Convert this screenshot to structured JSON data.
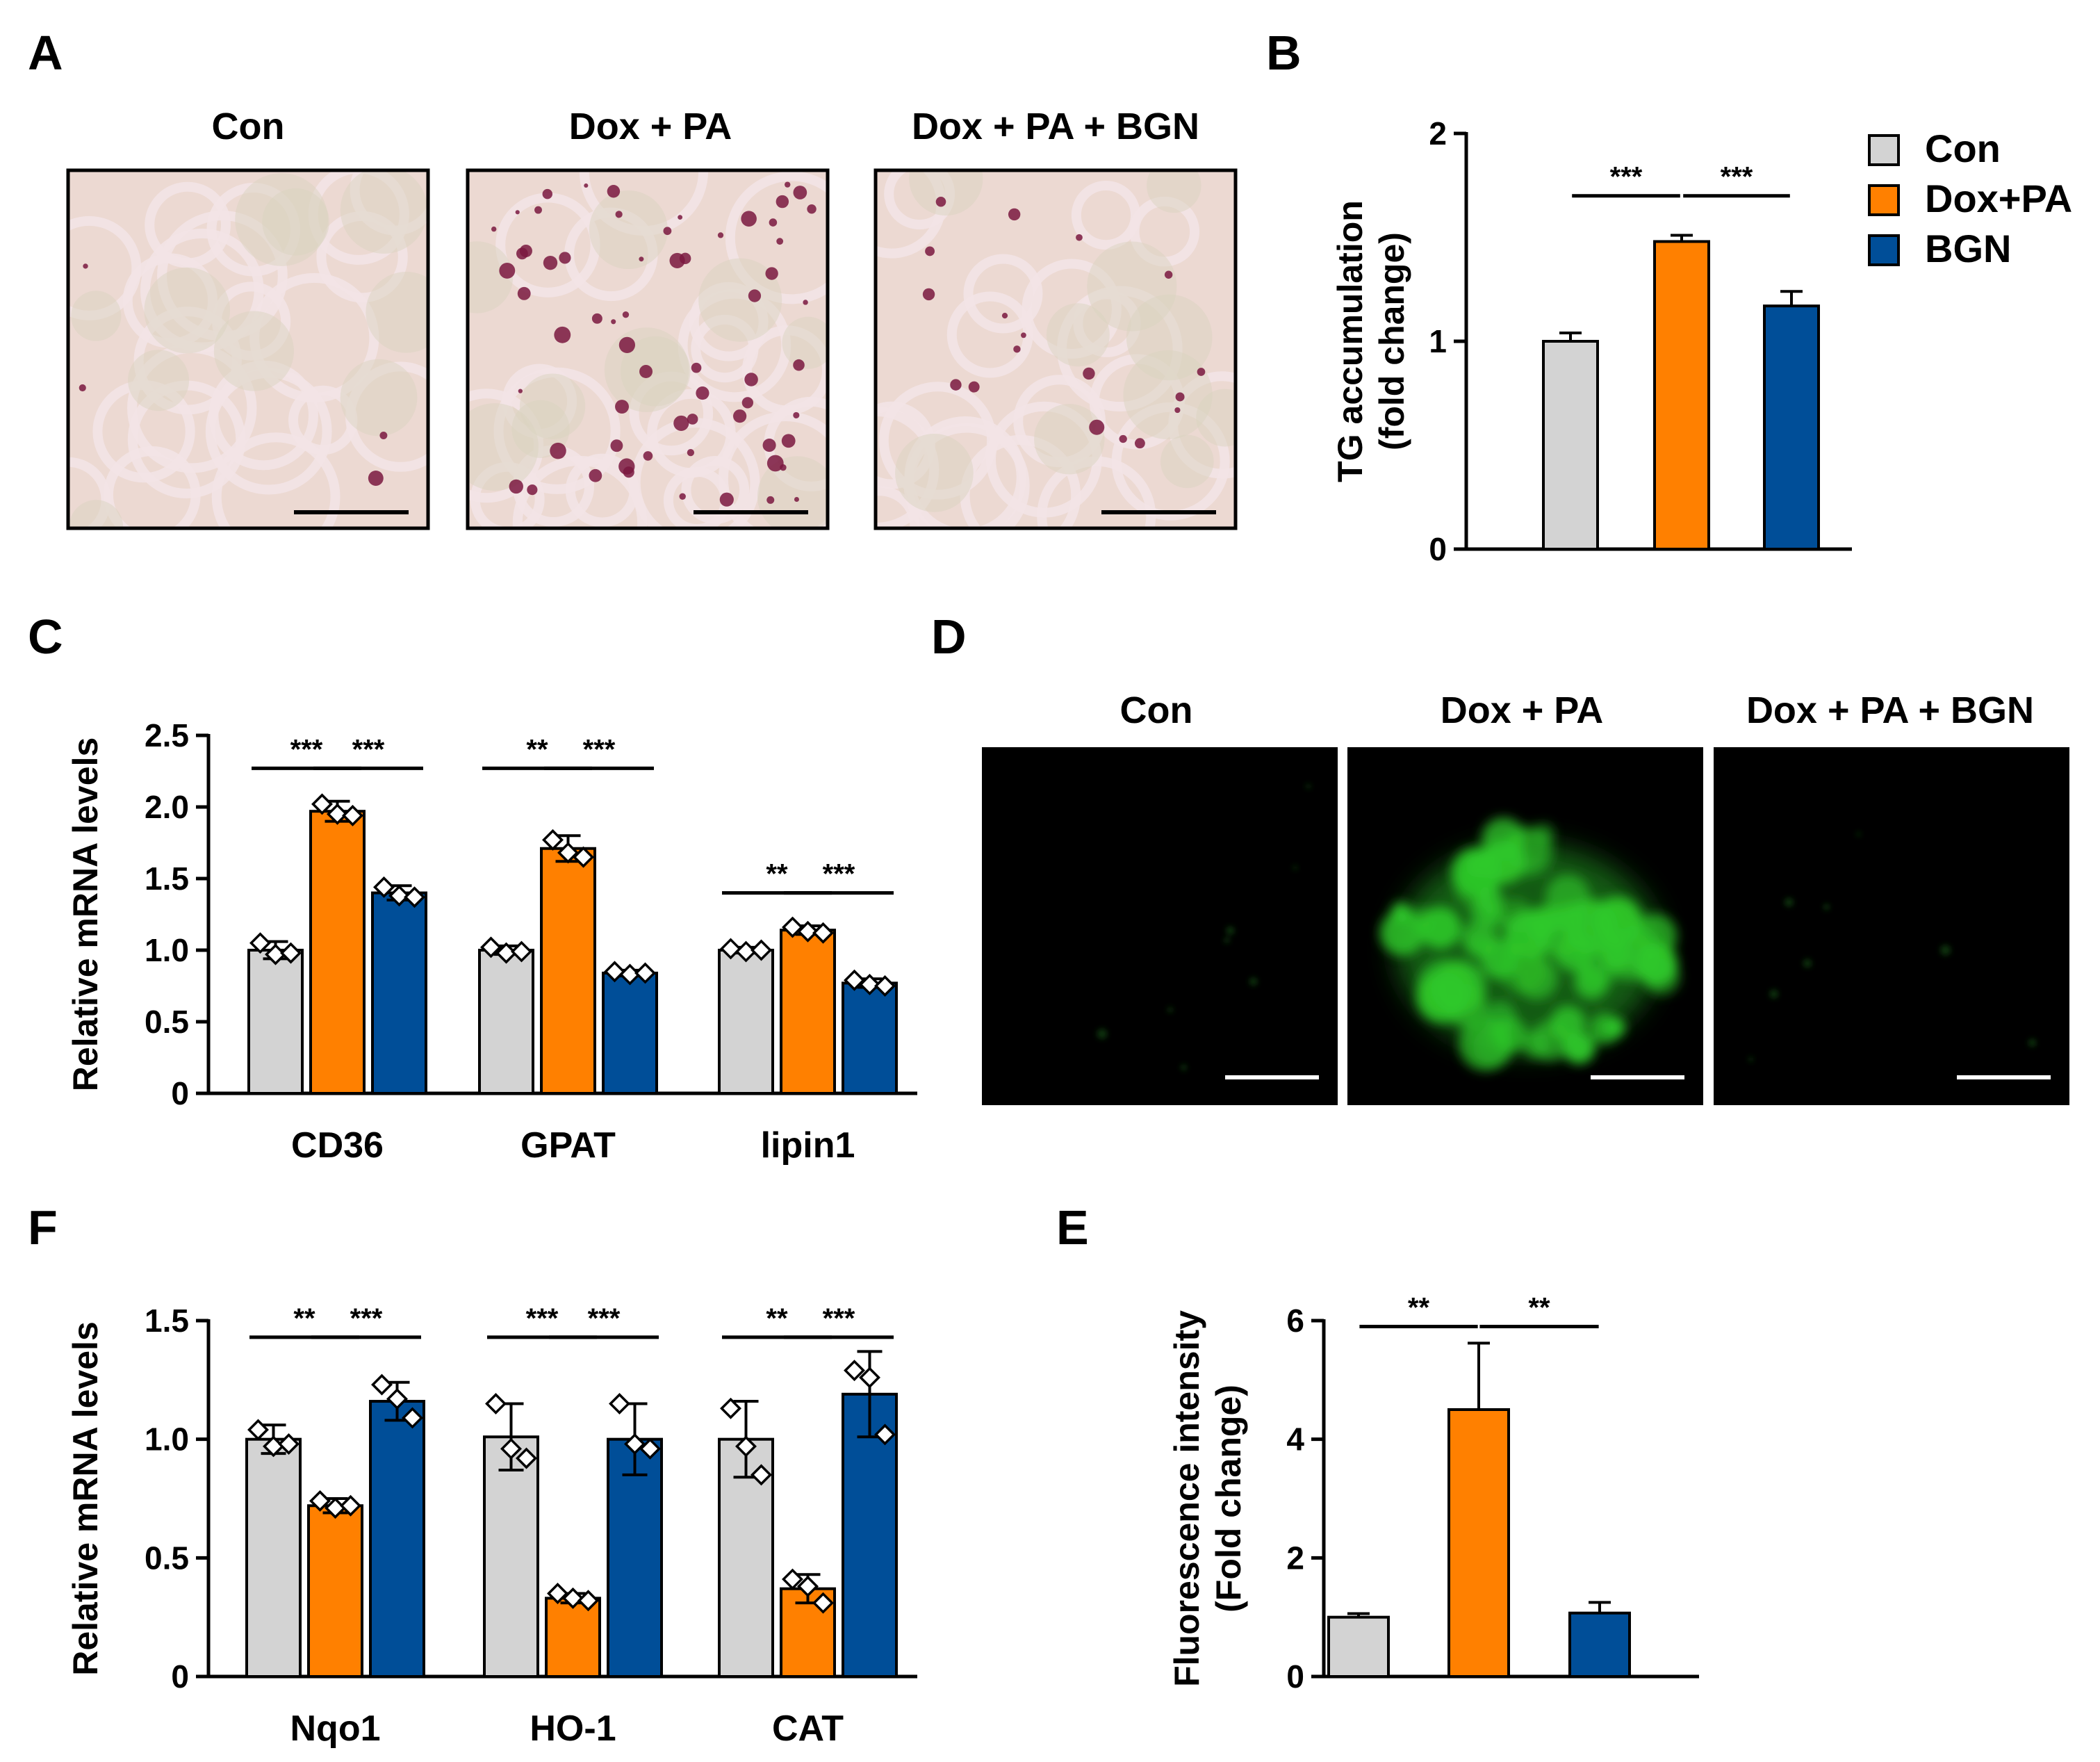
{
  "colors": {
    "con": "#d3d3d3",
    "doxpa": "#ff8000",
    "bgn": "#004e98",
    "stain_bg": "#ecd9d2",
    "stain_membrane": "#f3e3e6",
    "lipid": "#7a1840",
    "fluor": "#2fc92a",
    "fluor_bg": "#000000"
  },
  "panel_a": {
    "letter": "A",
    "titles": [
      "Con",
      "Dox + PA",
      "Dox + PA + BGN"
    ],
    "lipid_density": [
      0.05,
      0.9,
      0.25
    ]
  },
  "panel_d": {
    "letter": "D",
    "titles": [
      "Con",
      "Dox + PA",
      "Dox + PA + BGN"
    ],
    "intensity": [
      0.06,
      1.0,
      0.05
    ]
  },
  "chart_data": [
    {
      "panel": "B",
      "type": "bar",
      "ylabel": [
        "TG accumulation",
        "(fold change)"
      ],
      "ylim": [
        0,
        2
      ],
      "yticks": [
        0,
        1,
        2
      ],
      "ytick_labels": [
        "0",
        "1",
        "2"
      ],
      "categories": [
        "Con",
        "Dox+PA",
        "BGN"
      ],
      "values": [
        1.0,
        1.48,
        1.17
      ],
      "errors": [
        0.04,
        0.03,
        0.07
      ],
      "significance": [
        {
          "from": 0,
          "to": 1,
          "label": "***",
          "y": 1.7
        },
        {
          "from": 1,
          "to": 2,
          "label": "***",
          "y": 1.7
        }
      ],
      "legend": {
        "entries": [
          "Con",
          "Dox+PA",
          "BGN"
        ],
        "placement": "right"
      }
    },
    {
      "panel": "C",
      "type": "bar",
      "ylabel": "Relative mRNA levels",
      "ylim": [
        0,
        2.5
      ],
      "yticks": [
        0,
        0.5,
        1.0,
        1.5,
        2.0,
        2.5
      ],
      "ytick_labels": [
        "0",
        "0.5",
        "1.0",
        "1.5",
        "2.0",
        "2.5"
      ],
      "categories": [
        "CD36",
        "GPAT",
        "lipin1"
      ],
      "series": [
        {
          "values": [
            1.0,
            1.0,
            1.0
          ],
          "errors": [
            0.06,
            0.03,
            0.02
          ],
          "points": [
            [
              1.05,
              0.97,
              0.98
            ],
            [
              1.02,
              0.98,
              0.99
            ],
            [
              1.01,
              0.99,
              1.0
            ]
          ]
        },
        {
          "values": [
            1.97,
            1.71,
            1.14
          ],
          "errors": [
            0.07,
            0.09,
            0.03
          ],
          "points": [
            [
              2.02,
              1.95,
              1.94
            ],
            [
              1.77,
              1.68,
              1.65
            ],
            [
              1.16,
              1.13,
              1.12
            ]
          ]
        },
        {
          "values": [
            1.4,
            0.84,
            0.77
          ],
          "errors": [
            0.05,
            0.02,
            0.03
          ],
          "points": [
            [
              1.44,
              1.38,
              1.37
            ],
            [
              0.85,
              0.83,
              0.84
            ],
            [
              0.79,
              0.76,
              0.75
            ]
          ]
        }
      ],
      "significance": [
        {
          "cat": 0,
          "from": 0,
          "to": 1,
          "label": "***",
          "y": 2.27
        },
        {
          "cat": 0,
          "from": 1,
          "to": 2,
          "label": "***",
          "y": 2.27
        },
        {
          "cat": 1,
          "from": 0,
          "to": 1,
          "label": "**",
          "y": 2.27
        },
        {
          "cat": 1,
          "from": 1,
          "to": 2,
          "label": "***",
          "y": 2.27
        },
        {
          "cat": 2,
          "from": 0,
          "to": 1,
          "label": "**",
          "y": 1.4
        },
        {
          "cat": 2,
          "from": 1,
          "to": 2,
          "label": "***",
          "y": 1.4
        }
      ]
    },
    {
      "panel": "E",
      "type": "bar",
      "ylabel": [
        "Fluorescence intensity",
        "(Fold change)"
      ],
      "ylim": [
        0,
        6
      ],
      "yticks": [
        0,
        2,
        4,
        6
      ],
      "ytick_labels": [
        "0",
        "2",
        "4",
        "6"
      ],
      "categories": [
        "Con",
        "Dox+PA",
        "BGN"
      ],
      "values": [
        1.0,
        4.5,
        1.07
      ],
      "errors": [
        0.06,
        1.12,
        0.18
      ],
      "significance": [
        {
          "from": 0,
          "to": 1,
          "label": "**",
          "y": 5.9
        },
        {
          "from": 1,
          "to": 2,
          "label": "**",
          "y": 5.9
        }
      ]
    },
    {
      "panel": "F",
      "type": "bar",
      "ylabel": "Relative mRNA levels",
      "ylim": [
        0,
        1.5
      ],
      "yticks": [
        0,
        0.5,
        1.0,
        1.5
      ],
      "ytick_labels": [
        "0",
        "0.5",
        "1.0",
        "1.5"
      ],
      "categories": [
        "Nqo1",
        "HO-1",
        "CAT"
      ],
      "series": [
        {
          "values": [
            1.0,
            1.01,
            1.0
          ],
          "errors": [
            0.06,
            0.14,
            0.16
          ],
          "points": [
            [
              1.04,
              0.97,
              0.98
            ],
            [
              1.15,
              0.96,
              0.92
            ],
            [
              1.13,
              0.97,
              0.85
            ]
          ]
        },
        {
          "values": [
            0.72,
            0.33,
            0.37
          ],
          "errors": [
            0.03,
            0.02,
            0.06
          ],
          "points": [
            [
              0.74,
              0.71,
              0.72
            ],
            [
              0.35,
              0.33,
              0.32
            ],
            [
              0.41,
              0.38,
              0.31
            ]
          ]
        },
        {
          "values": [
            1.16,
            1.0,
            1.19
          ],
          "errors": [
            0.08,
            0.15,
            0.18
          ],
          "points": [
            [
              1.23,
              1.17,
              1.09
            ],
            [
              1.15,
              0.98,
              0.96
            ],
            [
              1.29,
              1.26,
              1.02
            ]
          ]
        }
      ],
      "significance": [
        {
          "cat": 0,
          "from": 0,
          "to": 1,
          "label": "**",
          "y": 1.43
        },
        {
          "cat": 0,
          "from": 1,
          "to": 2,
          "label": "***",
          "y": 1.43
        },
        {
          "cat": 1,
          "from": 0,
          "to": 1,
          "label": "***",
          "y": 1.43
        },
        {
          "cat": 1,
          "from": 1,
          "to": 2,
          "label": "***",
          "y": 1.43
        },
        {
          "cat": 2,
          "from": 0,
          "to": 1,
          "label": "**",
          "y": 1.43
        },
        {
          "cat": 2,
          "from": 1,
          "to": 2,
          "label": "***",
          "y": 1.43
        }
      ]
    }
  ]
}
